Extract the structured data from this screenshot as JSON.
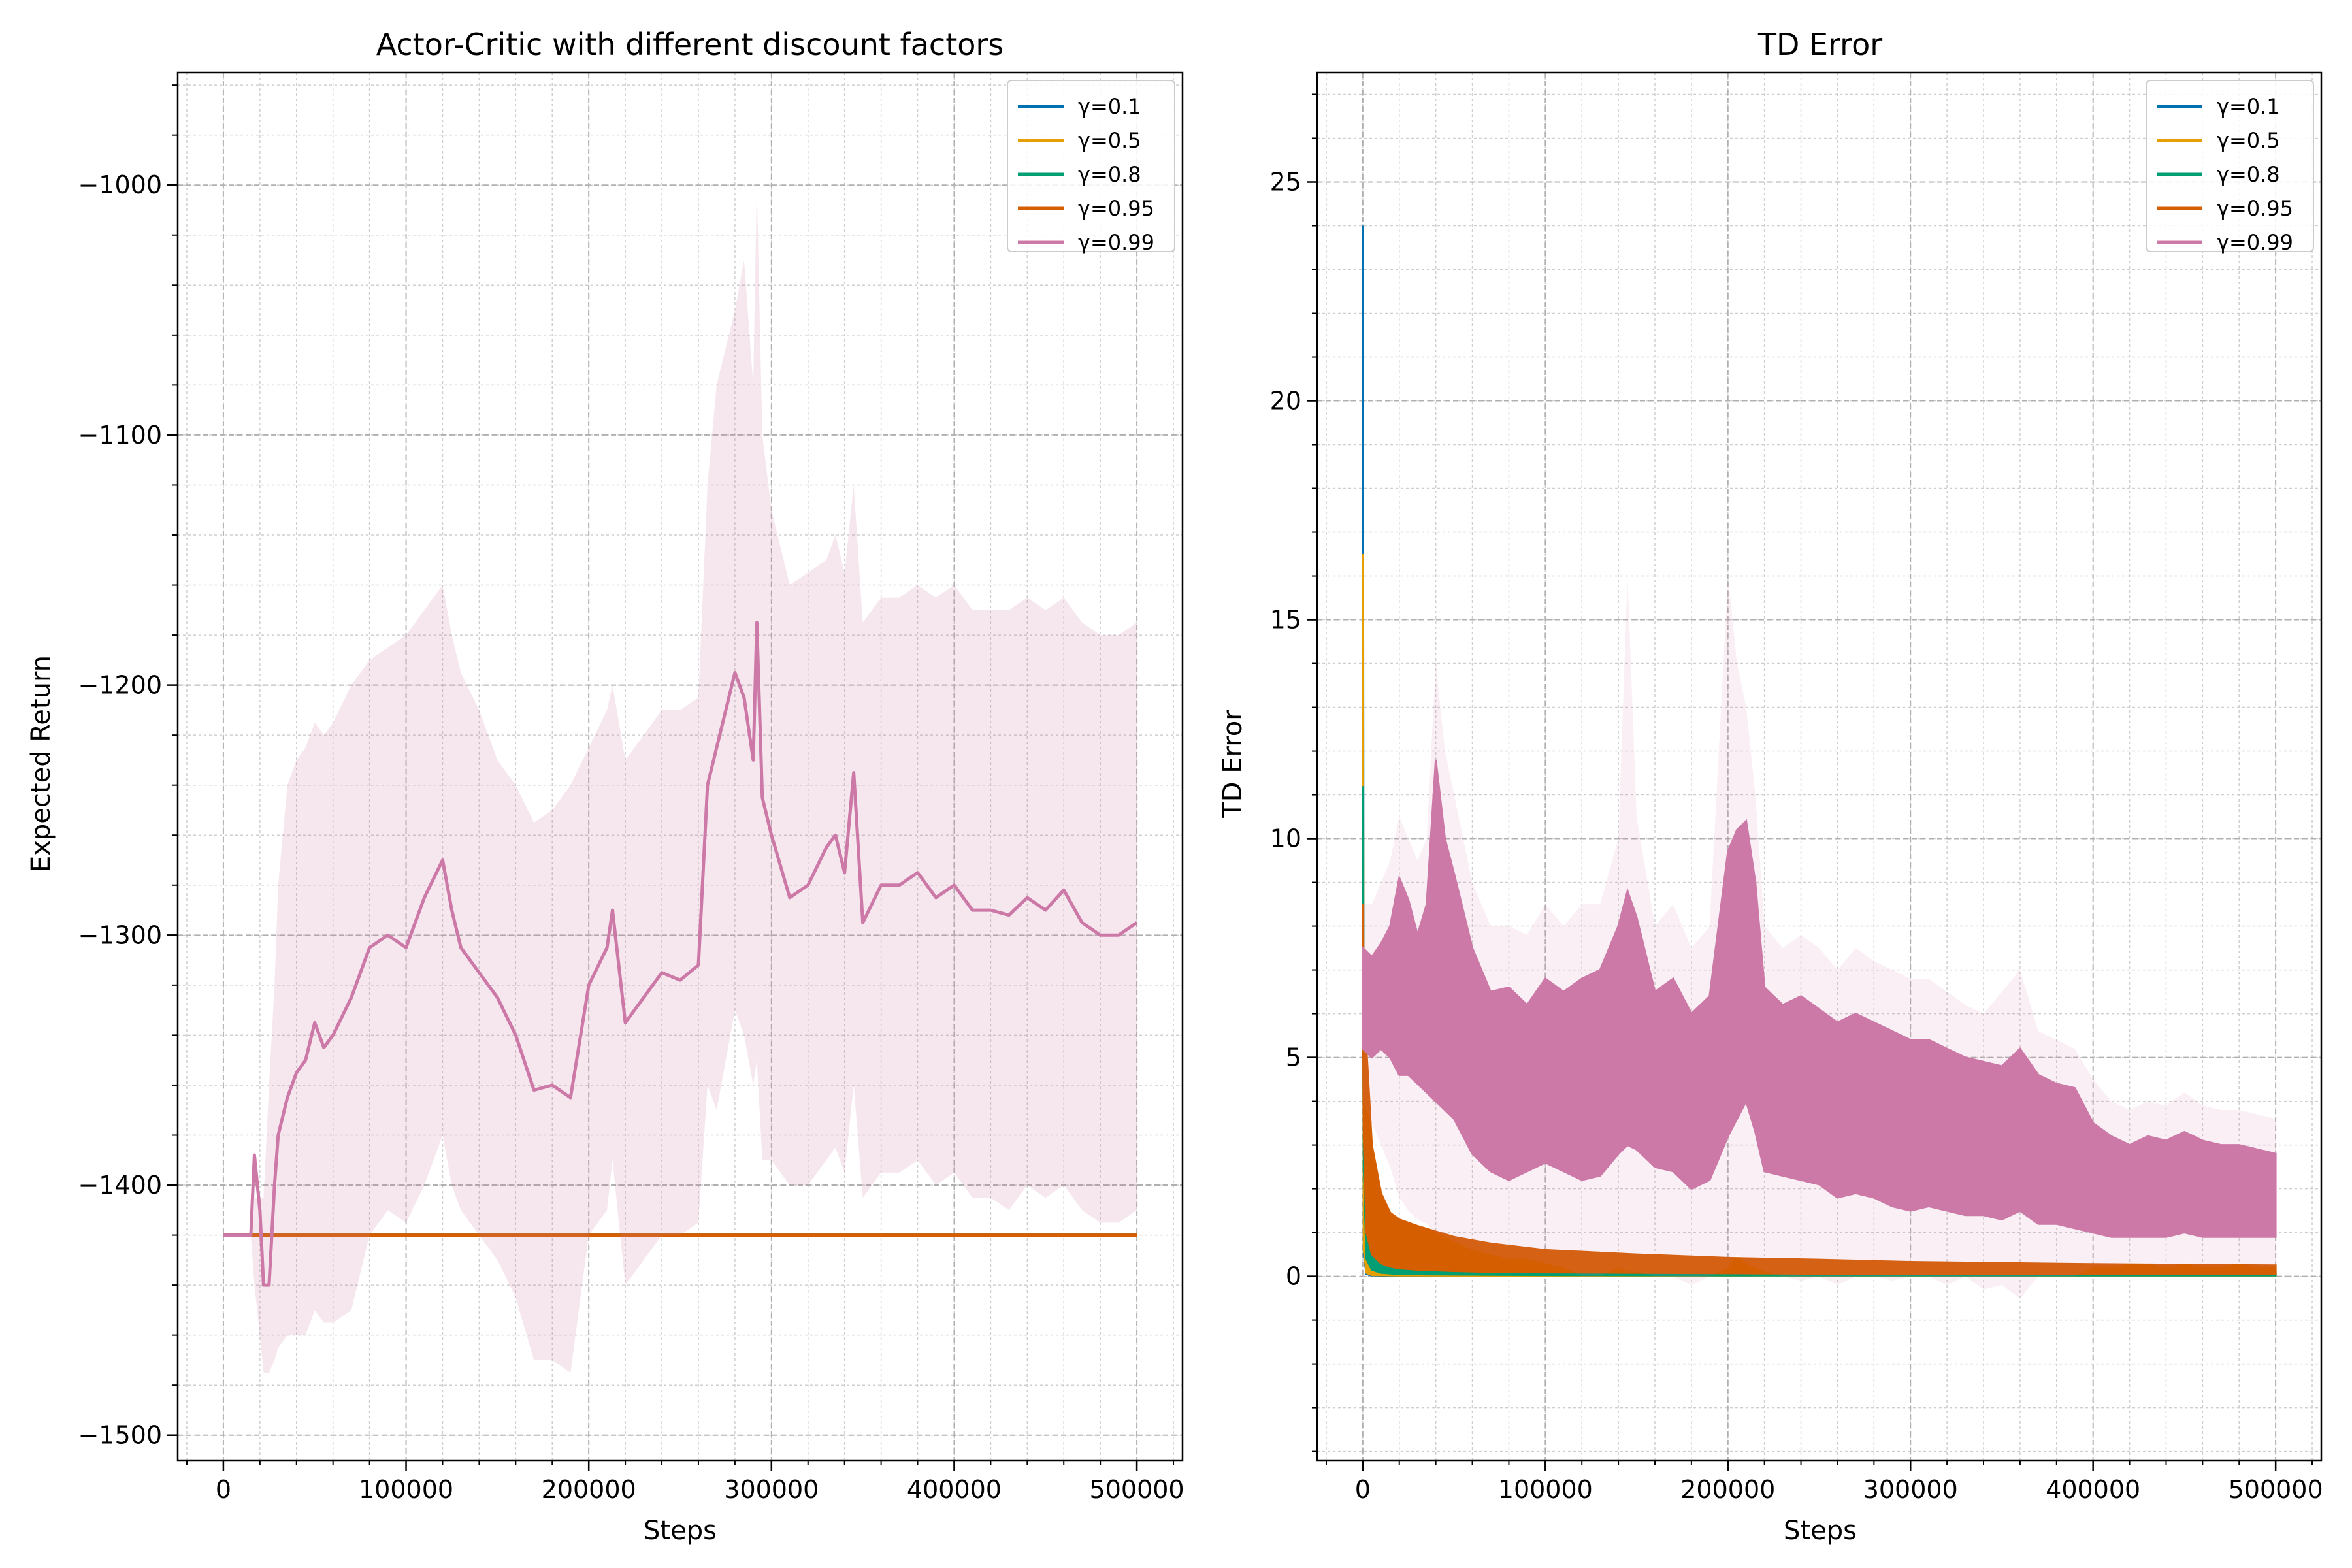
{
  "chart_data": [
    {
      "type": "line",
      "title": "Actor-Critic with different discount factors",
      "xlabel": "Steps",
      "ylabel": "Expected Return",
      "xlim": [
        -25000,
        525000
      ],
      "ylim": [
        -1510,
        -955
      ],
      "xticks": [
        0,
        100000,
        200000,
        300000,
        400000,
        500000
      ],
      "yticks": [
        -1500,
        -1400,
        -1300,
        -1200,
        -1100,
        -1000
      ],
      "grid": true,
      "minor_grid": true,
      "legend_position": "upper right",
      "series": [
        {
          "name": "γ=0.1",
          "color": "#0072B2",
          "x": [
            0,
            500000
          ],
          "y": [
            -1420,
            -1420
          ]
        },
        {
          "name": "γ=0.5",
          "color": "#E69F00",
          "x": [
            0,
            500000
          ],
          "y": [
            -1420,
            -1420
          ]
        },
        {
          "name": "γ=0.8",
          "color": "#009E73",
          "x": [
            0,
            500000
          ],
          "y": [
            -1420,
            -1420
          ]
        },
        {
          "name": "γ=0.95",
          "color": "#D55E00",
          "x": [
            0,
            500000
          ],
          "y": [
            -1420,
            -1420
          ]
        },
        {
          "name": "γ=0.99",
          "color": "#CC79A7",
          "x": [
            0,
            15000,
            17000,
            20000,
            22000,
            25000,
            28000,
            30000,
            35000,
            40000,
            45000,
            50000,
            55000,
            60000,
            70000,
            80000,
            90000,
            100000,
            110000,
            120000,
            125000,
            130000,
            140000,
            150000,
            160000,
            170000,
            180000,
            190000,
            200000,
            210000,
            213000,
            220000,
            230000,
            240000,
            250000,
            260000,
            265000,
            270000,
            280000,
            285000,
            290000,
            292000,
            295000,
            300000,
            310000,
            320000,
            330000,
            335000,
            340000,
            345000,
            350000,
            360000,
            370000,
            380000,
            390000,
            400000,
            410000,
            420000,
            430000,
            440000,
            450000,
            460000,
            470000,
            480000,
            490000,
            500000
          ],
          "y": [
            -1420,
            -1420,
            -1388,
            -1410,
            -1440,
            -1440,
            -1400,
            -1380,
            -1365,
            -1355,
            -1350,
            -1335,
            -1345,
            -1340,
            -1325,
            -1305,
            -1300,
            -1305,
            -1285,
            -1270,
            -1290,
            -1305,
            -1315,
            -1325,
            -1340,
            -1362,
            -1360,
            -1365,
            -1320,
            -1305,
            -1290,
            -1335,
            -1325,
            -1315,
            -1318,
            -1312,
            -1240,
            -1225,
            -1195,
            -1205,
            -1230,
            -1175,
            -1245,
            -1260,
            -1285,
            -1280,
            -1265,
            -1260,
            -1275,
            -1235,
            -1295,
            -1280,
            -1280,
            -1275,
            -1285,
            -1280,
            -1290,
            -1290,
            -1292,
            -1285,
            -1290,
            -1282,
            -1295,
            -1300,
            -1300,
            -1295
          ],
          "band_upper": [
            -1420,
            -1420,
            -1405,
            -1405,
            -1405,
            -1360,
            -1320,
            -1280,
            -1240,
            -1230,
            -1225,
            -1215,
            -1220,
            -1215,
            -1200,
            -1190,
            -1185,
            -1180,
            -1170,
            -1160,
            -1180,
            -1195,
            -1210,
            -1230,
            -1240,
            -1255,
            -1250,
            -1240,
            -1225,
            -1210,
            -1200,
            -1230,
            -1220,
            -1210,
            -1210,
            -1205,
            -1120,
            -1080,
            -1050,
            -1030,
            -1080,
            -1000,
            -1100,
            -1130,
            -1160,
            -1155,
            -1150,
            -1140,
            -1155,
            -1120,
            -1175,
            -1165,
            -1165,
            -1160,
            -1165,
            -1160,
            -1170,
            -1170,
            -1170,
            -1165,
            -1170,
            -1165,
            -1175,
            -1180,
            -1180,
            -1175
          ],
          "band_lower": [
            -1420,
            -1420,
            -1440,
            -1460,
            -1475,
            -1475,
            -1470,
            -1465,
            -1460,
            -1460,
            -1460,
            -1450,
            -1455,
            -1455,
            -1450,
            -1420,
            -1410,
            -1415,
            -1400,
            -1380,
            -1400,
            -1410,
            -1420,
            -1430,
            -1445,
            -1470,
            -1470,
            -1475,
            -1420,
            -1410,
            -1390,
            -1440,
            -1430,
            -1420,
            -1420,
            -1415,
            -1360,
            -1370,
            -1330,
            -1340,
            -1360,
            -1350,
            -1390,
            -1390,
            -1400,
            -1400,
            -1390,
            -1385,
            -1395,
            -1360,
            -1405,
            -1395,
            -1395,
            -1390,
            -1400,
            -1395,
            -1405,
            -1405,
            -1410,
            -1400,
            -1405,
            -1400,
            -1410,
            -1415,
            -1415,
            -1410
          ]
        }
      ]
    },
    {
      "type": "line",
      "title": "TD Error",
      "xlabel": "Steps",
      "ylabel": "TD Error",
      "xlim": [
        -25000,
        525000
      ],
      "ylim": [
        -4.2,
        27.5
      ],
      "xticks": [
        0,
        100000,
        200000,
        300000,
        400000,
        500000
      ],
      "yticks": [
        0,
        5,
        10,
        15,
        20,
        25
      ],
      "grid": true,
      "minor_grid": true,
      "legend_position": "upper right",
      "series": [
        {
          "name": "γ=0.1",
          "color": "#0072B2",
          "x": [
            0,
            500,
            2000,
            5000,
            20000,
            100000,
            300000,
            500000
          ],
          "upper": [
            24.0,
            3.0,
            0.3,
            0.12,
            0.08,
            0.06,
            0.05,
            0.05
          ],
          "lower": [
            16.5,
            0.5,
            0.05,
            0.02,
            0.01,
            0.01,
            0.01,
            0.01
          ]
        },
        {
          "name": "γ=0.5",
          "color": "#E69F00",
          "x": [
            0,
            500,
            2000,
            5000,
            20000,
            100000,
            300000,
            500000
          ],
          "upper": [
            16.5,
            4.0,
            0.5,
            0.2,
            0.12,
            0.08,
            0.07,
            0.06
          ],
          "lower": [
            11.0,
            0.6,
            0.08,
            0.03,
            0.02,
            0.01,
            0.01,
            0.01
          ]
        },
        {
          "name": "γ=0.8",
          "color": "#009E73",
          "x": [
            0,
            500,
            2000,
            5000,
            10000,
            20000,
            50000,
            100000,
            200000,
            300000,
            400000,
            500000
          ],
          "upper": [
            11.2,
            6.0,
            2.5,
            1.0,
            0.55,
            0.35,
            0.25,
            0.2,
            0.16,
            0.14,
            0.12,
            0.11
          ],
          "lower": [
            8.0,
            2.5,
            0.4,
            0.15,
            0.08,
            0.05,
            0.04,
            0.03,
            0.02,
            0.02,
            0.02,
            0.02
          ]
        },
        {
          "name": "γ=0.95",
          "color": "#D55E00",
          "x": [
            0,
            500,
            2000,
            5000,
            10000,
            15000,
            20000,
            30000,
            50000,
            70000,
            100000,
            150000,
            200000,
            250000,
            300000,
            400000,
            500000
          ],
          "upper": [
            8.5,
            7.0,
            5.2,
            3.0,
            1.9,
            1.45,
            1.3,
            1.15,
            0.9,
            0.75,
            0.6,
            0.5,
            0.42,
            0.38,
            0.33,
            0.28,
            0.25
          ],
          "lower": [
            6.5,
            3.2,
            1.0,
            0.5,
            0.3,
            0.22,
            0.18,
            0.15,
            0.12,
            0.1,
            0.09,
            0.08,
            0.07,
            0.06,
            0.06,
            0.05,
            0.05
          ]
        },
        {
          "name": "γ=0.99",
          "color": "#CC79A7",
          "x": [
            0,
            5000,
            10000,
            15000,
            20000,
            25000,
            30000,
            35000,
            40000,
            45000,
            50000,
            60000,
            70000,
            80000,
            90000,
            100000,
            110000,
            120000,
            130000,
            140000,
            145000,
            150000,
            160000,
            170000,
            180000,
            190000,
            200000,
            205000,
            210000,
            215000,
            220000,
            230000,
            240000,
            250000,
            260000,
            270000,
            280000,
            290000,
            300000,
            310000,
            320000,
            330000,
            340000,
            350000,
            360000,
            370000,
            380000,
            390000,
            400000,
            410000,
            420000,
            430000,
            440000,
            450000,
            460000,
            470000,
            480000,
            490000,
            500000
          ],
          "upper": [
            7.5,
            7.3,
            7.6,
            8.0,
            9.1,
            8.6,
            7.8,
            8.5,
            11.8,
            10.0,
            9.2,
            7.5,
            6.5,
            6.6,
            6.2,
            6.8,
            6.5,
            6.8,
            7.0,
            8.0,
            8.8,
            8.2,
            6.5,
            6.8,
            6.0,
            6.4,
            9.7,
            10.2,
            10.4,
            9.0,
            6.6,
            6.2,
            6.4,
            6.1,
            5.8,
            6.0,
            5.8,
            5.6,
            5.4,
            5.4,
            5.2,
            5.0,
            4.9,
            4.8,
            5.2,
            4.6,
            4.4,
            4.3,
            3.5,
            3.2,
            3.0,
            3.2,
            3.1,
            3.3,
            3.1,
            3.0,
            3.0,
            2.9,
            2.8
          ],
          "lower": [
            5.2,
            5.0,
            5.2,
            5.0,
            4.6,
            4.6,
            4.4,
            4.2,
            4.0,
            3.8,
            3.6,
            2.8,
            2.4,
            2.2,
            2.4,
            2.6,
            2.4,
            2.2,
            2.3,
            2.8,
            3.0,
            2.9,
            2.5,
            2.4,
            2.0,
            2.2,
            3.2,
            3.6,
            4.0,
            3.3,
            2.4,
            2.3,
            2.2,
            2.1,
            1.8,
            1.9,
            1.8,
            1.6,
            1.5,
            1.6,
            1.5,
            1.4,
            1.4,
            1.3,
            1.5,
            1.2,
            1.2,
            1.1,
            1.0,
            0.9,
            0.9,
            0.9,
            0.9,
            1.0,
            0.9,
            0.9,
            0.9,
            0.9,
            0.9
          ],
          "shade_upper": [
            8.5,
            8.5,
            9.0,
            9.5,
            10.5,
            10.0,
            9.5,
            10.0,
            14.0,
            12.0,
            11.0,
            9.0,
            8.0,
            8.0,
            7.8,
            8.5,
            8.0,
            8.5,
            8.5,
            10.0,
            16.0,
            10.5,
            8.0,
            8.5,
            7.5,
            8.0,
            16.0,
            14.0,
            13.0,
            11.0,
            8.0,
            7.5,
            7.8,
            7.5,
            7.0,
            7.5,
            7.2,
            7.0,
            6.8,
            6.8,
            6.5,
            6.2,
            6.0,
            6.5,
            7.0,
            5.6,
            5.4,
            5.2,
            4.5,
            4.0,
            3.8,
            4.0,
            3.9,
            4.2,
            3.9,
            3.8,
            3.8,
            3.7,
            3.6
          ],
          "shade_lower": [
            4.0,
            3.5,
            3.0,
            2.5,
            1.8,
            1.5,
            1.3,
            1.2,
            1.0,
            0.9,
            0.8,
            0.6,
            0.5,
            0.4,
            0.4,
            0.3,
            0.2,
            0.0,
            0.0,
            0.2,
            0.1,
            0.1,
            0.0,
            0.0,
            -0.2,
            0.0,
            0.2,
            0.5,
            0.3,
            0.2,
            0.1,
            0.0,
            -0.1,
            0.0,
            -0.2,
            0.0,
            0.0,
            -0.1,
            0.0,
            0.0,
            -0.2,
            0.0,
            -0.3,
            -0.2,
            -0.5,
            0.0,
            0.0,
            0.0,
            0.2,
            0.2,
            0.3,
            0.3,
            0.2,
            0.3,
            0.2,
            0.2,
            0.3,
            0.2,
            0.2
          ]
        }
      ]
    }
  ]
}
